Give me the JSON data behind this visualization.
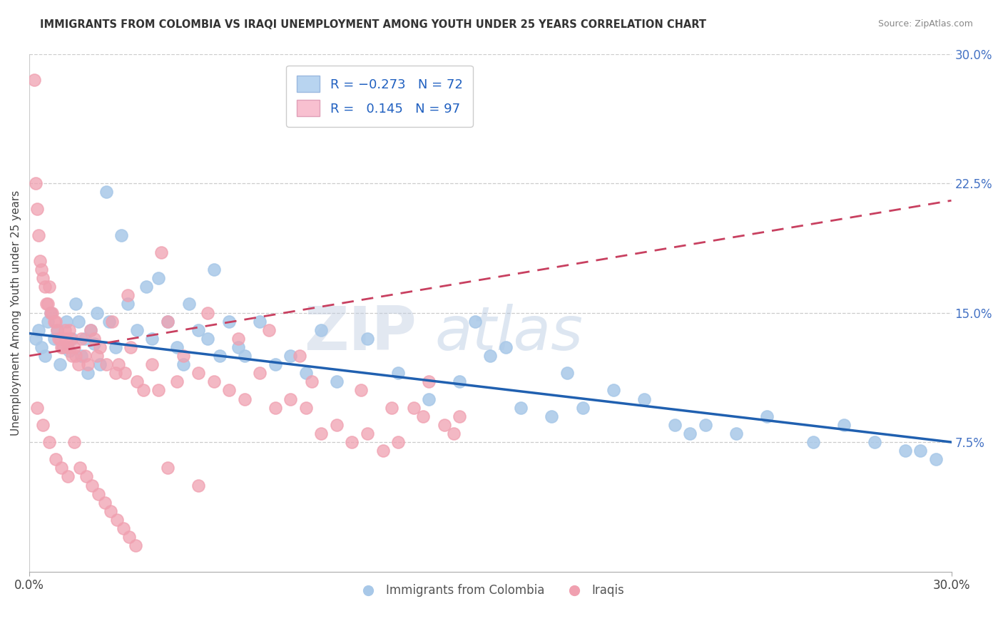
{
  "title": "IMMIGRANTS FROM COLOMBIA VS IRAQI UNEMPLOYMENT AMONG YOUTH UNDER 25 YEARS CORRELATION CHART",
  "source": "Source: ZipAtlas.com",
  "ylabel": "Unemployment Among Youth under 25 years",
  "right_yticks": [
    7.5,
    15.0,
    22.5,
    30.0
  ],
  "right_ytick_labels": [
    "7.5%",
    "15.0%",
    "22.5%",
    "30.0%"
  ],
  "xmin": 0.0,
  "xmax": 30.0,
  "ymin": 0.0,
  "ymax": 30.0,
  "bottom_legend": [
    "Immigrants from Colombia",
    "Iraqis"
  ],
  "blue_scatter_color": "#a8c8e8",
  "pink_scatter_color": "#f0a0b0",
  "blue_line_color": "#2060b0",
  "pink_line_color": "#c84060",
  "blue_line_y0": 13.8,
  "blue_line_y1": 7.5,
  "pink_line_y0": 12.5,
  "pink_line_y1": 21.5,
  "watermark": "ZIPatlas",
  "watermark_color": "#c8d8f0",
  "blue_points_x": [
    0.2,
    0.3,
    0.4,
    0.5,
    0.6,
    0.7,
    0.8,
    0.9,
    1.0,
    1.1,
    1.2,
    1.3,
    1.4,
    1.5,
    1.6,
    1.7,
    1.8,
    1.9,
    2.0,
    2.1,
    2.2,
    2.3,
    2.5,
    2.6,
    2.8,
    3.0,
    3.2,
    3.5,
    3.8,
    4.0,
    4.2,
    4.5,
    4.8,
    5.0,
    5.2,
    5.5,
    5.8,
    6.0,
    6.2,
    6.5,
    6.8,
    7.0,
    7.5,
    8.0,
    8.5,
    9.0,
    9.5,
    10.0,
    11.0,
    12.0,
    13.0,
    14.0,
    15.0,
    16.0,
    17.0,
    18.0,
    19.0,
    20.0,
    21.0,
    22.0,
    23.0,
    24.0,
    25.5,
    26.5,
    27.5,
    28.5,
    29.0,
    29.5,
    14.5,
    15.5,
    17.5,
    21.5
  ],
  "blue_points_y": [
    13.5,
    14.0,
    13.0,
    12.5,
    14.5,
    15.0,
    13.5,
    14.0,
    12.0,
    13.0,
    14.5,
    12.8,
    13.5,
    15.5,
    14.5,
    12.5,
    13.5,
    11.5,
    14.0,
    13.2,
    15.0,
    12.0,
    22.0,
    14.5,
    13.0,
    19.5,
    15.5,
    14.0,
    16.5,
    13.5,
    17.0,
    14.5,
    13.0,
    12.0,
    15.5,
    14.0,
    13.5,
    17.5,
    12.5,
    14.5,
    13.0,
    12.5,
    14.5,
    12.0,
    12.5,
    11.5,
    14.0,
    11.0,
    13.5,
    11.5,
    10.0,
    11.0,
    12.5,
    9.5,
    9.0,
    9.5,
    10.5,
    10.0,
    8.5,
    8.5,
    8.0,
    9.0,
    7.5,
    8.5,
    7.5,
    7.0,
    7.0,
    6.5,
    14.5,
    13.0,
    11.5,
    8.0
  ],
  "pink_points_x": [
    0.15,
    0.2,
    0.25,
    0.3,
    0.35,
    0.4,
    0.45,
    0.5,
    0.55,
    0.6,
    0.65,
    0.7,
    0.75,
    0.8,
    0.85,
    0.9,
    0.95,
    1.0,
    1.05,
    1.1,
    1.15,
    1.2,
    1.25,
    1.3,
    1.35,
    1.4,
    1.45,
    1.5,
    1.6,
    1.7,
    1.8,
    1.9,
    2.0,
    2.1,
    2.2,
    2.3,
    2.5,
    2.7,
    2.9,
    3.1,
    3.3,
    3.5,
    3.7,
    4.0,
    4.2,
    4.5,
    4.8,
    5.0,
    5.5,
    6.0,
    6.5,
    7.0,
    7.5,
    8.0,
    8.5,
    9.0,
    9.5,
    10.0,
    10.5,
    11.0,
    11.5,
    12.0,
    12.5,
    13.0,
    13.5,
    14.0,
    2.8,
    3.2,
    4.3,
    5.8,
    6.8,
    7.8,
    8.8,
    9.2,
    10.8,
    11.8,
    12.8,
    13.8,
    0.25,
    0.45,
    0.65,
    0.85,
    1.05,
    1.25,
    1.45,
    1.65,
    1.85,
    2.05,
    2.25,
    2.45,
    2.65,
    2.85,
    3.05,
    3.25,
    3.45,
    4.5,
    5.5
  ],
  "pink_points_y": [
    28.5,
    22.5,
    21.0,
    19.5,
    18.0,
    17.5,
    17.0,
    16.5,
    15.5,
    15.5,
    16.5,
    15.0,
    15.0,
    14.5,
    14.5,
    14.0,
    13.5,
    13.5,
    13.0,
    13.0,
    14.0,
    13.5,
    13.0,
    14.0,
    13.5,
    12.5,
    13.0,
    12.5,
    12.0,
    13.5,
    12.5,
    12.0,
    14.0,
    13.5,
    12.5,
    13.0,
    12.0,
    14.5,
    12.0,
    11.5,
    13.0,
    11.0,
    10.5,
    12.0,
    10.5,
    14.5,
    11.0,
    12.5,
    11.5,
    11.0,
    10.5,
    10.0,
    11.5,
    9.5,
    10.0,
    9.5,
    8.0,
    8.5,
    7.5,
    8.0,
    7.0,
    7.5,
    9.5,
    11.0,
    8.5,
    9.0,
    11.5,
    16.0,
    18.5,
    15.0,
    13.5,
    14.0,
    12.5,
    11.0,
    10.5,
    9.5,
    9.0,
    8.0,
    9.5,
    8.5,
    7.5,
    6.5,
    6.0,
    5.5,
    7.5,
    6.0,
    5.5,
    5.0,
    4.5,
    4.0,
    3.5,
    3.0,
    2.5,
    2.0,
    1.5,
    6.0,
    5.0
  ]
}
